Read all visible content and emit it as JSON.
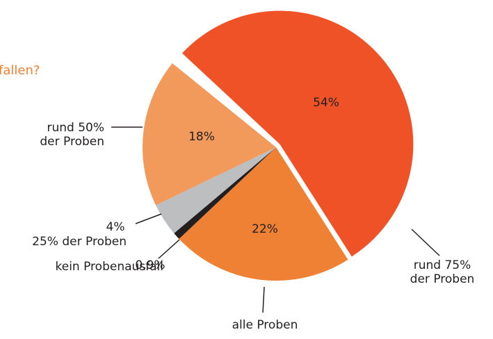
{
  "chart_data": {
    "type": "pie",
    "title": "fallen?",
    "categories": [
      "rund 75% der Proben",
      "alle Proben",
      "kein Probenausfall",
      "25% der Proben",
      "rund 50% der Proben"
    ],
    "values": [
      54,
      22,
      0.9,
      4,
      18
    ],
    "value_labels": [
      "54%",
      "22%",
      "0,9%",
      "4%",
      "18%"
    ],
    "colors": [
      "#f05228",
      "#ee8133",
      "#231f20",
      "#bcbec0",
      "#f19a5b"
    ]
  }
}
